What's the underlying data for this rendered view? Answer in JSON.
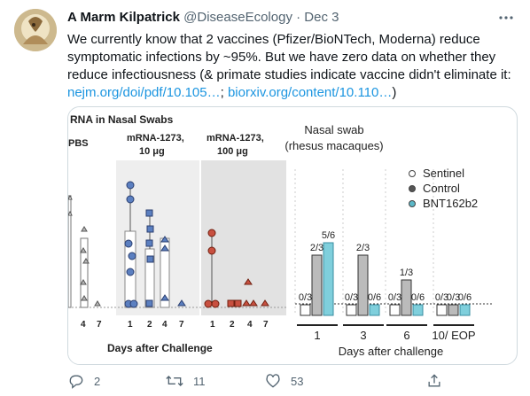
{
  "tweet": {
    "author_name": "A Marm Kilpatrick",
    "handle": "@DiseaseEcology",
    "separator": "·",
    "timestamp": "Dec 3",
    "text_part1": "We currently know that 2 vaccines (Pfizer/BioNTech, Moderna) reduce symptomatic infections by ~95%. But we have zero data on whether they reduce infectiousness (& primate studies indicate vaccine didn't eliminate it: ",
    "link1": "nejm.org/doi/pdf/10.105…",
    "text_part2": "; ",
    "link2": "biorxiv.org/content/10.110…",
    "text_part3": ")"
  },
  "actions": {
    "reply_count": "2",
    "retweet_count": "11",
    "like_count": "53"
  },
  "icons": {
    "more": "more-horizontal-icon",
    "reply": "reply-icon",
    "retweet": "retweet-icon",
    "like": "heart-icon",
    "share": "share-icon"
  },
  "colors": {
    "link": "#1b95e0",
    "secondary_text": "#536471"
  },
  "figure_left": {
    "title": "RNA in Nasal Swabs",
    "group_labels": [
      "PBS",
      "mRNA-1273,",
      "10 μg",
      "mRNA-1273,",
      "100 μg"
    ],
    "tick_labels": [
      "4",
      "7",
      "1",
      "2",
      "4",
      "7",
      "1",
      "2",
      "4",
      "7"
    ],
    "xlabel": "Days after Challenge"
  },
  "chart_data": {
    "type": "bar",
    "title": "Nasal swab",
    "subtitle": "(rhesus macaques)",
    "xlabel": "Days after challenge",
    "categories": [
      "1",
      "3",
      "6",
      "10/ EOP"
    ],
    "legend_position": "top-right",
    "series": [
      {
        "name": "Sentinel",
        "color": "#ffffff",
        "fractions": [
          "0/3",
          "0/3",
          "0/3",
          "0/3"
        ]
      },
      {
        "name": "Control",
        "color": "#555555",
        "fractions": [
          "2/3",
          "2/3",
          "1/3",
          "0/3"
        ]
      },
      {
        "name": "BNT162b2",
        "color": "#5bb8c8",
        "fractions": [
          "5/6",
          "0/6",
          "0/6",
          "0/6"
        ]
      }
    ]
  }
}
